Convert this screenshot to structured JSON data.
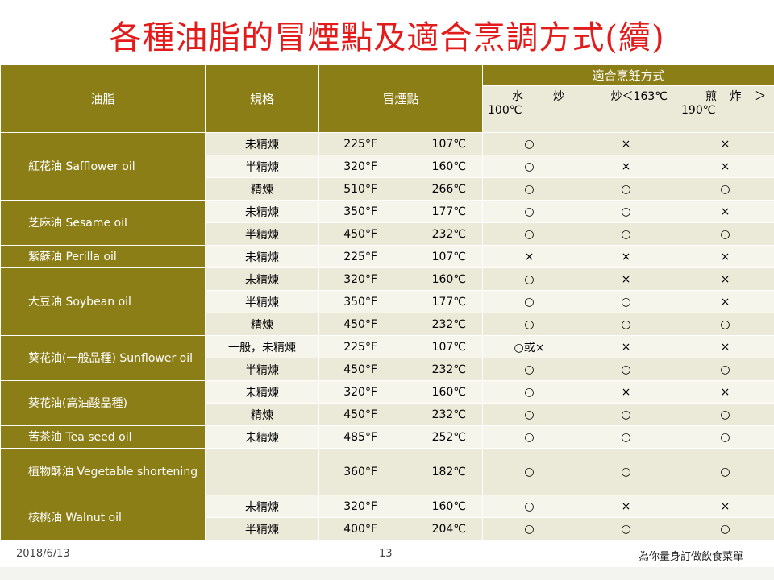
{
  "title": "各種油脂的冒煙點及適合烹調方式(續)",
  "header": {
    "oil": "油脂",
    "grade": "規格",
    "smoke_point": "冒煙點",
    "methods": "適合烹飪方式",
    "method_water_a": "水",
    "method_water_b": "炒",
    "method_water_temp": "100℃",
    "method_stir": "炒＜163℃",
    "method_fry_a": "煎",
    "method_fry_b": "炸",
    "method_fry_c": "＞",
    "method_fry_temp": "190℃"
  },
  "rows": [
    {
      "grade": "未精煉",
      "f": "225°F",
      "c": "107℃",
      "m1": "○",
      "m2": "×",
      "m3": "×"
    },
    {
      "grade": "半精煉",
      "f": "320°F",
      "c": "160℃",
      "m1": "○",
      "m2": "×",
      "m3": "×"
    },
    {
      "grade": "精煉",
      "f": "510°F",
      "c": "266℃",
      "m1": "○",
      "m2": "○",
      "m3": "○"
    },
    {
      "grade": "未精煉",
      "f": "350°F",
      "c": "177℃",
      "m1": "○",
      "m2": "○",
      "m3": "×"
    },
    {
      "grade": "半精煉",
      "f": "450°F",
      "c": "232℃",
      "m1": "○",
      "m2": "○",
      "m3": "○"
    },
    {
      "grade": "未精煉",
      "f": "225°F",
      "c": "107℃",
      "m1": "×",
      "m2": "×",
      "m3": "×"
    },
    {
      "grade": "未精煉",
      "f": "320°F",
      "c": "160℃",
      "m1": "○",
      "m2": "×",
      "m3": "×"
    },
    {
      "grade": "半精煉",
      "f": "350°F",
      "c": "177℃",
      "m1": "○",
      "m2": "○",
      "m3": "×"
    },
    {
      "grade": "精煉",
      "f": "450°F",
      "c": "232℃",
      "m1": "○",
      "m2": "○",
      "m3": "○"
    },
    {
      "grade": "一般，未精煉",
      "f": "225°F",
      "c": "107℃",
      "m1": "○或×",
      "m2": "×",
      "m3": "×"
    },
    {
      "grade": "半精煉",
      "f": "450°F",
      "c": "232℃",
      "m1": "○",
      "m2": "○",
      "m3": "○"
    },
    {
      "grade": "未精煉",
      "f": "320°F",
      "c": "160℃",
      "m1": "○",
      "m2": "×",
      "m3": "×"
    },
    {
      "grade": "精煉",
      "f": "450°F",
      "c": "232℃",
      "m1": "○",
      "m2": "○",
      "m3": "○"
    },
    {
      "grade": "未精煉",
      "f": "485°F",
      "c": "252℃",
      "m1": "○",
      "m2": "○",
      "m3": "○"
    },
    {
      "grade": "",
      "f": "360°F",
      "c": "182℃",
      "m1": "○",
      "m2": "○",
      "m3": "○"
    },
    {
      "grade": "未精煉",
      "f": "320°F",
      "c": "160℃",
      "m1": "○",
      "m2": "×",
      "m3": "×"
    },
    {
      "grade": "半精煉",
      "f": "400°F",
      "c": "204℃",
      "m1": "○",
      "m2": "○",
      "m3": "○"
    }
  ],
  "oils": [
    {
      "name": "紅花油 Safflower oil"
    },
    {
      "name": "芝麻油 Sesame oil"
    },
    {
      "name": "紫蘇油 Perilla oil"
    },
    {
      "name": "大豆油 Soybean oil"
    },
    {
      "name": "葵花油(一般品種) Sunflower oil"
    },
    {
      "name": "葵花油(高油酸品種)"
    },
    {
      "name": "苦茶油 Tea seed oil"
    },
    {
      "name": "植物酥油 Vegetable shortening"
    },
    {
      "name": "核桃油 Walnut oil"
    }
  ],
  "footer": {
    "date": "2018/6/13",
    "page": "13",
    "note": "為你量身訂做飲食菜單"
  }
}
